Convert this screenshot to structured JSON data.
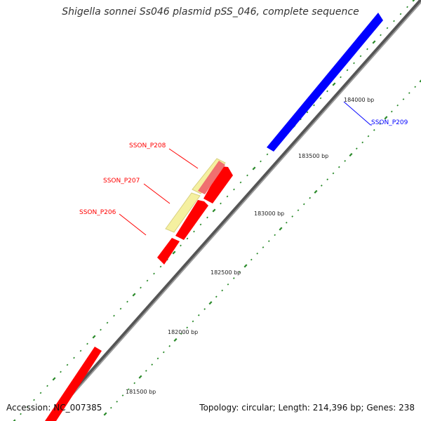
{
  "title": "Shigella sonnei Ss046 plasmid pSS_046, complete sequence",
  "footer": {
    "accession": "Accession: NC_007385",
    "summary": "Topology: circular; Length: 214,396 bp; Genes: 238"
  },
  "colors": {
    "forward_gene": "#ff0000",
    "forward_gene_light": "#f07070",
    "reverse_gene": "#0000ff",
    "other_feature": "#f5f0a0",
    "backbone": "#888888",
    "tick_marks": "#2a8a2a"
  },
  "ticks": [
    {
      "label": "181500 bp"
    },
    {
      "label": "182000 bp"
    },
    {
      "label": "182500 bp"
    },
    {
      "label": "183000 bp"
    },
    {
      "label": "183500 bp"
    },
    {
      "label": "184000 bp"
    }
  ],
  "genes": [
    {
      "id": "SSON_P206",
      "label": "SSON_P206",
      "strand": "forward"
    },
    {
      "id": "SSON_P207",
      "label": "SSON_P207",
      "strand": "forward"
    },
    {
      "id": "SSON_P208",
      "label": "SSON_P208",
      "strand": "forward"
    },
    {
      "id": "SSON_P209",
      "label": "SSON_P209",
      "strand": "reverse"
    }
  ]
}
